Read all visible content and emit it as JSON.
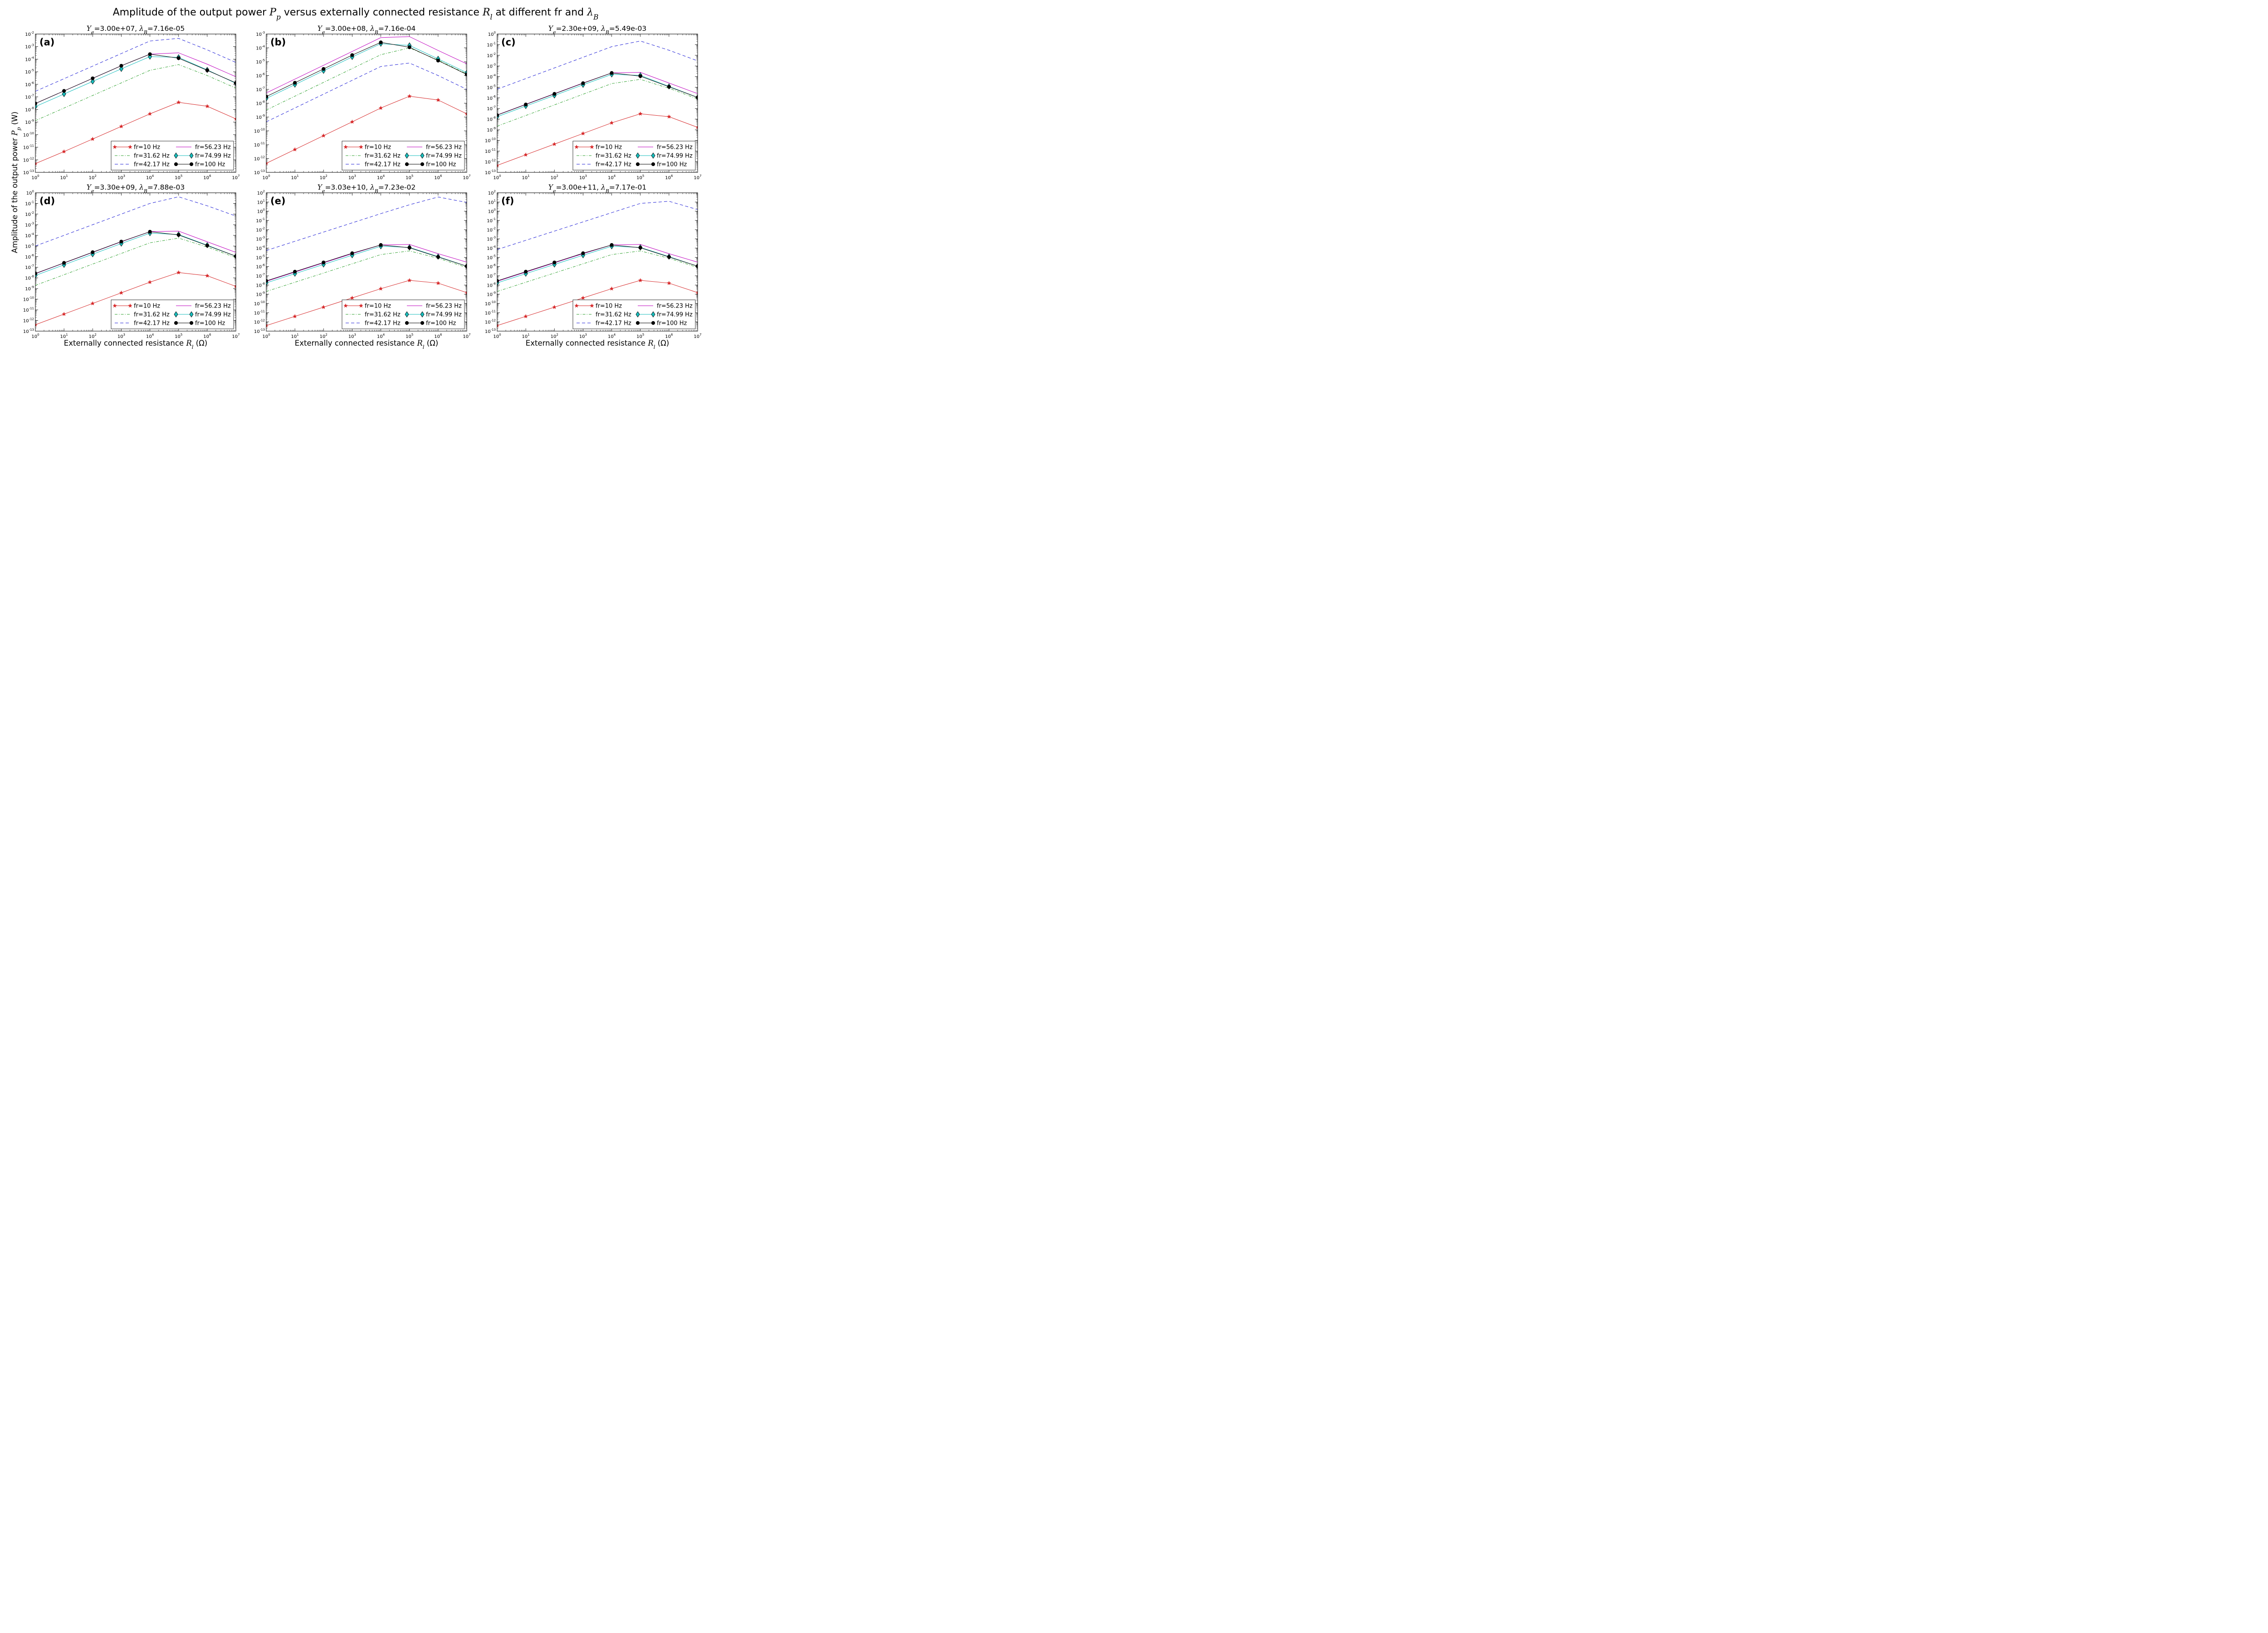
{
  "figure": {
    "title": "Amplitude of the output power P_p versus externally connected resistance R_l at different fr and λ_B",
    "x_axis_label": "Externally connected resistance R_l (Ω)",
    "y_axis_label": "Amplitude of the output power P_p (W)"
  },
  "colors": {
    "fr=10 Hz": "#d62728",
    "fr=31.62 Hz": "#2ca02c",
    "fr=42.17 Hz": "#1f1fd6",
    "fr=56.23 Hz": "#bf00bf",
    "fr=74.99 Hz": "#17bebe",
    "fr=100 Hz": "#000000"
  },
  "chart_data": [
    {
      "type": "line",
      "panel": "(a)",
      "title": "Y_e=3.00e+07, λ_B=7.16e-05",
      "xscale": "log",
      "yscale": "log",
      "xlim": [
        1,
        10000000
      ],
      "ylim": [
        1e-13,
        0.01
      ],
      "x": [
        1,
        10,
        100,
        1000,
        10000,
        100000,
        1000000,
        10000000
      ],
      "legend_location": "lower-right",
      "series": [
        {
          "name": "fr=10 Hz",
          "marker": "star",
          "line": "solid",
          "values": [
            5e-13,
            4.5e-12,
            4.5e-11,
            4.5e-10,
            4.5e-09,
            3.7e-08,
            1.8e-08,
            1.8e-09
          ]
        },
        {
          "name": "fr=31.62 Hz",
          "marker": "none",
          "line": "dashdot",
          "values": [
            1.3e-09,
            1.3e-08,
            1.3e-07,
            1.3e-06,
            1.3e-05,
            3.7e-05,
            5e-06,
            5e-07
          ]
        },
        {
          "name": "fr=42.17 Hz",
          "marker": "none",
          "line": "dashed",
          "values": [
            2.8e-07,
            2.8e-06,
            2.8e-05,
            0.00028,
            0.0028,
            0.0045,
            0.00055,
            5.5e-05
          ]
        },
        {
          "name": "fr=56.23 Hz",
          "marker": "none",
          "line": "solid",
          "values": [
            3e-08,
            3e-07,
            3e-06,
            3e-05,
            0.00025,
            0.00032,
            4e-05,
            4e-06
          ]
        },
        {
          "name": "fr=74.99 Hz",
          "marker": "diamond",
          "line": "solid",
          "values": [
            1.7e-08,
            1.7e-07,
            1.7e-06,
            1.7e-05,
            0.00016,
            0.00014,
            1.4e-05,
            1.2e-06
          ]
        },
        {
          "name": "fr=100 Hz",
          "marker": "circle",
          "line": "solid",
          "values": [
            3e-08,
            3e-07,
            3e-06,
            3e-05,
            0.00025,
            0.00012,
            1.3e-05,
            1.3e-06
          ]
        }
      ]
    },
    {
      "type": "line",
      "panel": "(b)",
      "title": "Y_e=3.00e+08, λ_B=7.16e-04",
      "xscale": "log",
      "yscale": "log",
      "xlim": [
        1,
        10000000
      ],
      "ylim": [
        1e-13,
        0.001
      ],
      "x": [
        1,
        10,
        100,
        1000,
        10000,
        100000,
        1000000,
        10000000
      ],
      "legend_location": "lower-right",
      "series": [
        {
          "name": "fr=10 Hz",
          "marker": "star",
          "line": "solid",
          "values": [
            4.5e-13,
            4.5e-12,
            4.5e-11,
            4.5e-10,
            4.5e-09,
            3.2e-08,
            1.7e-08,
            1.7e-09
          ]
        },
        {
          "name": "fr=31.62 Hz",
          "marker": "none",
          "line": "dashdot",
          "values": [
            3.2e-09,
            3.2e-08,
            3.2e-07,
            3.2e-06,
            3.2e-05,
            0.0001,
            1.3e-05,
            1.3e-06
          ]
        },
        {
          "name": "fr=42.17 Hz",
          "marker": "none",
          "line": "dashed",
          "values": [
            4.5e-10,
            4.5e-09,
            4.5e-08,
            4.5e-07,
            4.5e-06,
            8e-06,
            1e-06,
            1e-07
          ]
        },
        {
          "name": "fr=56.23 Hz",
          "marker": "none",
          "line": "solid",
          "values": [
            5.5e-08,
            5.5e-07,
            5.5e-06,
            5.5e-05,
            0.00055,
            0.00065,
            6.5e-05,
            7e-06
          ]
        },
        {
          "name": "fr=74.99 Hz",
          "marker": "diamond",
          "line": "solid",
          "values": [
            2.2e-08,
            2.2e-07,
            2.2e-06,
            2.2e-05,
            0.0002,
            0.00015,
            1.6e-05,
            1.6e-06
          ]
        },
        {
          "name": "fr=100 Hz",
          "marker": "circle",
          "line": "solid",
          "values": [
            3e-08,
            3e-07,
            3e-06,
            3e-05,
            0.00025,
            0.00011,
            1.2e-05,
            1.2e-06
          ]
        }
      ]
    },
    {
      "type": "line",
      "panel": "(c)",
      "title": "Y_e=2.30e+09, λ_B=5.49e-03",
      "xscale": "log",
      "yscale": "log",
      "xlim": [
        1,
        10000000
      ],
      "ylim": [
        1e-13,
        1
      ],
      "x": [
        1,
        10,
        100,
        1000,
        10000,
        100000,
        1000000,
        10000000
      ],
      "legend_location": "lower-right",
      "series": [
        {
          "name": "fr=10 Hz",
          "marker": "star",
          "line": "solid",
          "values": [
            4.5e-13,
            4.5e-12,
            4.5e-11,
            4.5e-10,
            4.5e-09,
            3.2e-08,
            1.7e-08,
            1.7e-09
          ]
        },
        {
          "name": "fr=31.62 Hz",
          "marker": "none",
          "line": "dashdot",
          "values": [
            2.2e-09,
            2.2e-08,
            2.2e-07,
            2.2e-06,
            2.2e-05,
            5.5e-05,
            8e-06,
            8e-07
          ]
        },
        {
          "name": "fr=42.17 Hz",
          "marker": "none",
          "line": "dashed",
          "values": [
            6.5e-06,
            6.5e-05,
            0.00065,
            0.0065,
            0.065,
            0.22,
            0.03,
            0.003
          ]
        },
        {
          "name": "fr=56.23 Hz",
          "marker": "none",
          "line": "solid",
          "values": [
            2.5e-08,
            2.5e-07,
            2.5e-06,
            2.5e-05,
            0.00022,
            0.00025,
            2.5e-05,
            2.5e-06
          ]
        },
        {
          "name": "fr=74.99 Hz",
          "marker": "diamond",
          "line": "solid",
          "values": [
            1.7e-08,
            1.7e-07,
            1.7e-06,
            1.7e-05,
            0.00016,
            0.00013,
            1.2e-05,
            1.1e-06
          ]
        },
        {
          "name": "fr=100 Hz",
          "marker": "circle",
          "line": "solid",
          "values": [
            2.4e-08,
            2.4e-07,
            2.4e-06,
            2.4e-05,
            0.00022,
            0.00011,
            1.1e-05,
            1.1e-06
          ]
        }
      ]
    },
    {
      "type": "line",
      "panel": "(d)",
      "title": "Y_e=3.30e+09, λ_B=7.88e-03",
      "xscale": "log",
      "yscale": "log",
      "xlim": [
        1,
        10000000
      ],
      "ylim": [
        1e-13,
        1
      ],
      "x": [
        1,
        10,
        100,
        1000,
        10000,
        100000,
        1000000,
        10000000
      ],
      "legend_location": "lower-right",
      "series": [
        {
          "name": "fr=10 Hz",
          "marker": "star",
          "line": "solid",
          "values": [
            4e-13,
            4e-12,
            4e-11,
            4e-10,
            4e-09,
            3.2e-08,
            1.6e-08,
            1.6e-09
          ]
        },
        {
          "name": "fr=31.62 Hz",
          "marker": "none",
          "line": "dashdot",
          "values": [
            2e-09,
            2e-08,
            2e-07,
            2e-06,
            2e-05,
            5.5e-05,
            8e-06,
            8e-07
          ]
        },
        {
          "name": "fr=42.17 Hz",
          "marker": "none",
          "line": "dashed",
          "values": [
            1e-05,
            0.0001,
            0.001,
            0.01,
            0.1,
            0.42,
            0.06,
            0.0065
          ]
        },
        {
          "name": "fr=56.23 Hz",
          "marker": "none",
          "line": "solid",
          "values": [
            2.5e-08,
            2.5e-07,
            2.5e-06,
            2.5e-05,
            0.00022,
            0.00025,
            2.5e-05,
            2.5e-06
          ]
        },
        {
          "name": "fr=74.99 Hz",
          "marker": "diamond",
          "line": "solid",
          "values": [
            1.7e-08,
            1.7e-07,
            1.7e-06,
            1.7e-05,
            0.00016,
            0.00012,
            1.2e-05,
            1.1e-06
          ]
        },
        {
          "name": "fr=100 Hz",
          "marker": "circle",
          "line": "solid",
          "values": [
            2.6e-08,
            2.6e-07,
            2.6e-06,
            2.6e-05,
            0.00022,
            0.00011,
            1.1e-05,
            1.1e-06
          ]
        }
      ]
    },
    {
      "type": "line",
      "panel": "(e)",
      "title": "Y_e=3.03e+10, λ_B=7.23e-02",
      "xscale": "log",
      "yscale": "log",
      "xlim": [
        1,
        10000000
      ],
      "ylim": [
        1e-13,
        100
      ],
      "x": [
        1,
        10,
        100,
        1000,
        10000,
        100000,
        1000000,
        10000000
      ],
      "legend_location": "lower-right",
      "series": [
        {
          "name": "fr=10 Hz",
          "marker": "star",
          "line": "solid",
          "values": [
            4e-13,
            4e-12,
            4e-11,
            4e-10,
            4e-09,
            3.2e-08,
            1.6e-08,
            1.5e-09
          ]
        },
        {
          "name": "fr=31.62 Hz",
          "marker": "none",
          "line": "dashdot",
          "values": [
            2e-09,
            2e-08,
            2e-07,
            2e-06,
            2e-05,
            5e-05,
            8e-06,
            8e-07
          ]
        },
        {
          "name": "fr=42.17 Hz",
          "marker": "none",
          "line": "dashed",
          "values": [
            5.5e-05,
            0.00055,
            0.0055,
            0.055,
            0.55,
            5,
            35,
            9
          ]
        },
        {
          "name": "fr=56.23 Hz",
          "marker": "none",
          "line": "solid",
          "values": [
            2.5e-08,
            2.5e-07,
            2.5e-06,
            2.5e-05,
            0.00022,
            0.00025,
            2.5e-05,
            3e-06
          ]
        },
        {
          "name": "fr=74.99 Hz",
          "marker": "diamond",
          "line": "solid",
          "values": [
            1.7e-08,
            1.7e-07,
            1.7e-06,
            1.7e-05,
            0.00016,
            0.00012,
            1.2e-05,
            1.1e-06
          ]
        },
        {
          "name": "fr=100 Hz",
          "marker": "circle",
          "line": "solid",
          "values": [
            2.8e-08,
            2.8e-07,
            2.8e-06,
            2.8e-05,
            0.00022,
            0.00011,
            1.1e-05,
            1.1e-06
          ]
        }
      ]
    },
    {
      "type": "line",
      "panel": "(f)",
      "title": "Y_e=3.00e+11, λ_B=7.17e-01",
      "xscale": "log",
      "yscale": "log",
      "xlim": [
        1,
        10000000
      ],
      "ylim": [
        1e-13,
        100
      ],
      "x": [
        1,
        10,
        100,
        1000,
        10000,
        100000,
        1000000,
        10000000
      ],
      "legend_location": "lower-right",
      "series": [
        {
          "name": "fr=10 Hz",
          "marker": "star",
          "line": "solid",
          "values": [
            4e-13,
            4e-12,
            4e-11,
            4e-10,
            4e-09,
            3.2e-08,
            1.6e-08,
            1.5e-09
          ]
        },
        {
          "name": "fr=31.62 Hz",
          "marker": "none",
          "line": "dashdot",
          "values": [
            2e-09,
            2e-08,
            2e-07,
            2e-06,
            2e-05,
            5e-05,
            8e-06,
            8e-07
          ]
        },
        {
          "name": "fr=42.17 Hz",
          "marker": "none",
          "line": "dashed",
          "values": [
            7e-05,
            0.0007,
            0.007,
            0.07,
            0.7,
            7,
            12,
            1.5
          ]
        },
        {
          "name": "fr=56.23 Hz",
          "marker": "none",
          "line": "solid",
          "values": [
            2.5e-08,
            2.5e-07,
            2.5e-06,
            2.5e-05,
            0.00022,
            0.00025,
            2.5e-05,
            3e-06
          ]
        },
        {
          "name": "fr=74.99 Hz",
          "marker": "diamond",
          "line": "solid",
          "values": [
            1.7e-08,
            1.7e-07,
            1.7e-06,
            1.7e-05,
            0.00016,
            0.00012,
            1.2e-05,
            1.1e-06
          ]
        },
        {
          "name": "fr=100 Hz",
          "marker": "circle",
          "line": "solid",
          "values": [
            2.8e-08,
            2.8e-07,
            2.8e-06,
            2.8e-05,
            0.00022,
            0.00011,
            1.1e-05,
            1.1e-06
          ]
        }
      ]
    }
  ]
}
